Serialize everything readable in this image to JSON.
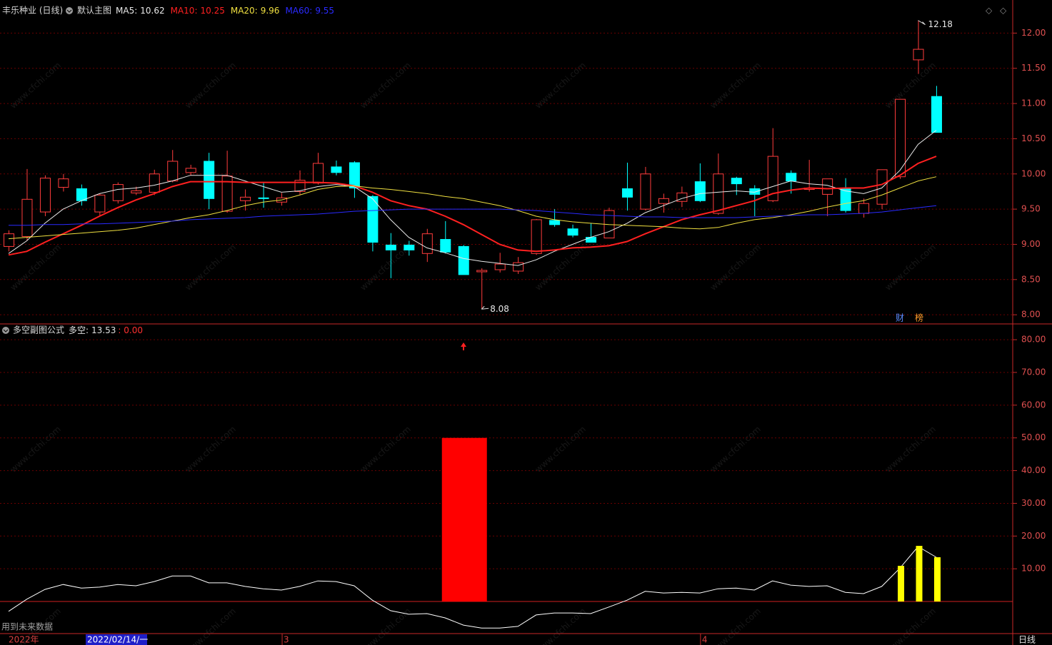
{
  "chart_data": [
    {
      "type": "candlestick",
      "title": "丰乐种业 (日线)",
      "subtitle": "默认主图",
      "categories": [
        "2022年",
        null,
        null,
        null,
        null,
        null,
        null,
        null,
        null,
        null,
        null,
        null,
        null,
        null,
        null,
        "3",
        null,
        null,
        null,
        null,
        null,
        null,
        null,
        null,
        null,
        null,
        null,
        null,
        null,
        null,
        null,
        null,
        null,
        null,
        null,
        null,
        null,
        null,
        "4",
        null,
        null,
        null,
        null,
        null,
        null,
        null,
        null,
        null,
        null,
        null,
        null,
        null
      ],
      "open": [
        8.97,
        9.11,
        9.46,
        9.81,
        9.79,
        9.46,
        9.62,
        9.73,
        9.74,
        9.9,
        10.02,
        10.18,
        9.47,
        9.62,
        9.66,
        9.6,
        9.75,
        9.87,
        10.1,
        10.16,
        9.68,
        8.99,
        8.99,
        8.87,
        9.07,
        8.97,
        8.61,
        8.64,
        8.62,
        8.87,
        9.34,
        9.22,
        9.1,
        9.09,
        9.79,
        9.5,
        9.58,
        9.61,
        9.89,
        9.44,
        9.94,
        9.79,
        9.62,
        10.01,
        9.78,
        9.71,
        9.79,
        9.44,
        9.57,
        9.96,
        11.62,
        11.1
      ],
      "high": [
        9.2,
        10.07,
        9.98,
        10.0,
        9.85,
        9.72,
        9.88,
        9.82,
        10.06,
        10.34,
        10.13,
        10.3,
        10.33,
        9.78,
        9.88,
        9.73,
        10.05,
        10.3,
        10.19,
        10.18,
        9.7,
        9.16,
        9.05,
        9.22,
        9.33,
        8.99,
        8.66,
        8.88,
        8.82,
        9.36,
        9.5,
        9.28,
        9.3,
        9.52,
        10.16,
        10.1,
        9.72,
        9.82,
        10.15,
        10.29,
        9.96,
        9.84,
        10.65,
        10.05,
        10.2,
        9.93,
        9.94,
        9.65,
        10.06,
        11.06,
        12.18,
        11.25
      ],
      "low": [
        8.9,
        9.05,
        9.4,
        9.75,
        9.55,
        9.4,
        9.58,
        9.7,
        9.7,
        9.88,
        9.98,
        9.5,
        9.45,
        9.48,
        9.52,
        9.55,
        9.7,
        9.85,
        9.98,
        9.66,
        8.9,
        8.52,
        8.84,
        8.75,
        8.87,
        8.57,
        8.08,
        8.6,
        8.58,
        8.85,
        9.25,
        9.1,
        9.03,
        9.09,
        9.48,
        9.48,
        9.45,
        9.53,
        9.6,
        9.42,
        9.7,
        9.4,
        9.6,
        9.72,
        9.75,
        9.4,
        9.45,
        9.38,
        9.5,
        9.93,
        11.42,
        10.59
      ],
      "close": [
        9.15,
        9.64,
        9.94,
        9.93,
        9.62,
        9.7,
        9.85,
        9.76,
        10.0,
        10.18,
        10.08,
        9.65,
        9.97,
        9.67,
        9.65,
        9.66,
        9.91,
        10.15,
        10.02,
        9.8,
        9.03,
        8.92,
        8.92,
        9.15,
        8.89,
        8.57,
        8.63,
        8.72,
        8.74,
        9.35,
        9.28,
        9.13,
        9.03,
        9.48,
        9.67,
        10.0,
        9.65,
        9.73,
        9.62,
        10.0,
        9.86,
        9.71,
        10.25,
        9.9,
        9.8,
        9.93,
        9.48,
        9.58,
        10.06,
        11.06,
        11.77,
        10.59
      ],
      "up_color": "#ff3c3c",
      "down_color": "#00ffff",
      "series": [
        {
          "name": "MA5:",
          "legend_value": 10.62,
          "color": "#e8e8e8",
          "values": [
            8.87,
            9.05,
            9.3,
            9.5,
            9.62,
            9.72,
            9.78,
            9.8,
            9.84,
            9.9,
            9.98,
            9.98,
            9.98,
            9.9,
            9.82,
            9.74,
            9.76,
            9.82,
            9.85,
            9.82,
            9.65,
            9.35,
            9.1,
            8.95,
            8.88,
            8.8,
            8.76,
            8.73,
            8.7,
            8.78,
            8.9,
            9.0,
            9.1,
            9.18,
            9.3,
            9.45,
            9.55,
            9.65,
            9.72,
            9.74,
            9.76,
            9.74,
            9.82,
            9.9,
            9.86,
            9.84,
            9.76,
            9.72,
            9.8,
            10.05,
            10.42,
            10.62
          ]
        },
        {
          "name": "MA10:",
          "legend_value": 10.25,
          "color": "#ff2020",
          "values": [
            8.85,
            8.9,
            9.03,
            9.15,
            9.27,
            9.4,
            9.52,
            9.63,
            9.72,
            9.82,
            9.89,
            9.89,
            9.89,
            9.88,
            9.88,
            9.88,
            9.88,
            9.88,
            9.87,
            9.83,
            9.74,
            9.62,
            9.55,
            9.5,
            9.4,
            9.28,
            9.14,
            9.0,
            8.92,
            8.9,
            8.92,
            8.95,
            8.96,
            8.98,
            9.04,
            9.15,
            9.25,
            9.35,
            9.42,
            9.48,
            9.55,
            9.62,
            9.72,
            9.77,
            9.8,
            9.79,
            9.8,
            9.8,
            9.85,
            9.98,
            10.15,
            10.25
          ]
        },
        {
          "name": "MA20:",
          "legend_value": 9.96,
          "color": "#f0e040",
          "values": [
            9.08,
            9.1,
            9.12,
            9.14,
            9.16,
            9.18,
            9.2,
            9.23,
            9.28,
            9.33,
            9.38,
            9.42,
            9.48,
            9.55,
            9.6,
            9.63,
            9.7,
            9.78,
            9.82,
            9.83,
            9.8,
            9.78,
            9.75,
            9.72,
            9.68,
            9.65,
            9.6,
            9.55,
            9.48,
            9.4,
            9.35,
            9.32,
            9.3,
            9.28,
            9.27,
            9.26,
            9.25,
            9.23,
            9.22,
            9.24,
            9.3,
            9.35,
            9.38,
            9.42,
            9.47,
            9.53,
            9.58,
            9.62,
            9.7,
            9.8,
            9.9,
            9.96
          ]
        },
        {
          "name": "MA60:",
          "legend_value": 9.55,
          "color": "#2a2aff",
          "values": [
            9.27,
            9.27,
            9.28,
            9.28,
            9.29,
            9.29,
            9.3,
            9.31,
            9.32,
            9.33,
            9.35,
            9.36,
            9.37,
            9.38,
            9.4,
            9.41,
            9.42,
            9.43,
            9.45,
            9.47,
            9.48,
            9.49,
            9.5,
            9.5,
            9.5,
            9.5,
            9.5,
            9.5,
            9.49,
            9.48,
            9.46,
            9.44,
            9.42,
            9.41,
            9.4,
            9.39,
            9.39,
            9.38,
            9.38,
            9.38,
            9.38,
            9.39,
            9.4,
            9.41,
            9.42,
            9.42,
            9.43,
            9.44,
            9.46,
            9.49,
            9.52,
            9.55
          ]
        }
      ],
      "high_label": 12.18,
      "low_label": 8.08,
      "badges": [
        "财",
        "榜"
      ],
      "ylim": [
        7.88,
        12.47
      ],
      "yticks": [
        {
          "value": 8,
          "label": "8.00"
        },
        {
          "value": 8.5,
          "label": "8.50"
        },
        {
          "value": 9,
          "label": "9.00"
        },
        {
          "value": 9.5,
          "label": "9.50"
        },
        {
          "value": 10,
          "label": "10.00"
        },
        {
          "value": 10.5,
          "label": "10.50"
        },
        {
          "value": 11,
          "label": "11.00"
        },
        {
          "value": 11.5,
          "label": "11.50"
        },
        {
          "value": 12,
          "label": "12.00"
        }
      ],
      "grid": true
    },
    {
      "type": "indicator",
      "title": "多空副图公式",
      "extra_text": ": 0.00",
      "series": [
        {
          "name": "多空:",
          "legend_value": 13.53,
          "kind": "line",
          "color": "#ffffff",
          "values": [
            -3,
            0.7,
            3.7,
            5.2,
            4.1,
            4.4,
            5.2,
            4.8,
            6.1,
            7.8,
            7.8,
            5.7,
            5.7,
            4.6,
            3.9,
            3.5,
            4.6,
            6.3,
            6.1,
            4.8,
            0.4,
            -2.8,
            -3.9,
            -3.7,
            -5.0,
            -7.2,
            -8.1,
            -8.1,
            -7.6,
            -4.1,
            -3.5,
            -3.5,
            -3.7,
            -1.7,
            0.4,
            3.1,
            2.6,
            2.8,
            2.6,
            3.9,
            4.1,
            3.5,
            6.3,
            5.0,
            4.6,
            4.8,
            2.8,
            2.4,
            4.6,
            10.2,
            16.8,
            13.53
          ]
        },
        {
          "kind": "bar",
          "color": "#ff0000",
          "values": [
            null,
            null,
            null,
            null,
            null,
            null,
            null,
            null,
            null,
            null,
            null,
            null,
            null,
            null,
            null,
            null,
            null,
            null,
            null,
            null,
            null,
            null,
            null,
            null,
            null,
            50,
            null,
            null,
            null,
            null,
            null,
            null,
            null,
            null,
            null,
            null,
            null,
            null,
            null,
            null,
            null,
            null,
            null,
            null,
            null,
            null,
            null,
            null,
            null,
            null,
            null,
            null
          ]
        },
        {
          "kind": "bar",
          "color": "#ffff00",
          "values": [
            null,
            null,
            null,
            null,
            null,
            null,
            null,
            null,
            null,
            null,
            null,
            null,
            null,
            null,
            null,
            null,
            null,
            null,
            null,
            null,
            null,
            null,
            null,
            null,
            null,
            null,
            null,
            null,
            null,
            null,
            null,
            null,
            null,
            null,
            null,
            null,
            null,
            null,
            null,
            null,
            null,
            null,
            null,
            null,
            null,
            null,
            null,
            null,
            null,
            10.9,
            17.0,
            13.53
          ]
        }
      ],
      "ylim": [
        -9.8,
        84.6
      ],
      "yticks": [
        {
          "value": 10,
          "label": "10.00"
        },
        {
          "value": 20,
          "label": "20.00"
        },
        {
          "value": 30,
          "label": "30.00"
        },
        {
          "value": 40,
          "label": "40.00"
        },
        {
          "value": 50,
          "label": "50.00"
        },
        {
          "value": 60,
          "label": "60.00"
        },
        {
          "value": 70,
          "label": "70.00"
        },
        {
          "value": 80,
          "label": "80.00"
        }
      ],
      "grid": true
    }
  ],
  "crosshair_label": "2022/02/14/一",
  "period": "日线",
  "footer_note": "用到未来数据",
  "watermark": "www.cfchi.com"
}
